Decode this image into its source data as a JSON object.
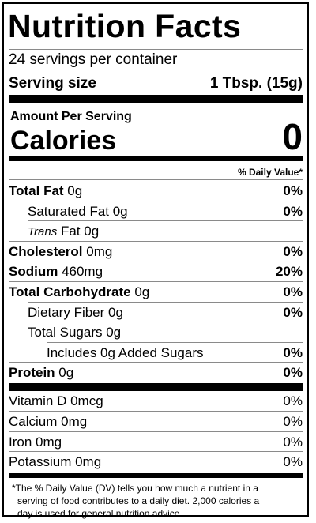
{
  "title": "Nutrition Facts",
  "servings_per_container": "24 servings per container",
  "serving_size": {
    "label": "Serving size",
    "value": "1 Tbsp. (15g)"
  },
  "amount_per_serving": "Amount Per Serving",
  "calories": {
    "label": "Calories",
    "value": "0"
  },
  "daily_value_header": "% Daily Value*",
  "nutrients": [
    {
      "name_bold": "Total Fat",
      "amount": " 0g",
      "dv": "0%",
      "indent": 0,
      "dv_bold": true
    },
    {
      "name": "Saturated Fat 0g",
      "dv": "0%",
      "indent": 1,
      "dv_bold": true
    },
    {
      "name_italic": "Trans",
      "amount": " Fat 0g",
      "dv": "",
      "indent": 1
    },
    {
      "name_bold": "Cholesterol",
      "amount": " 0mg",
      "dv": "0%",
      "indent": 0,
      "dv_bold": true
    },
    {
      "name_bold": "Sodium",
      "amount": " 460mg",
      "dv": "20%",
      "indent": 0,
      "dv_bold": true
    },
    {
      "name_bold": "Total Carbohydrate",
      "amount": " 0g",
      "dv": "0%",
      "indent": 0,
      "dv_bold": true
    },
    {
      "name": "Dietary Fiber 0g",
      "dv": "0%",
      "indent": 1,
      "dv_bold": true
    },
    {
      "name": "Total Sugars 0g",
      "dv": "",
      "indent": 1
    },
    {
      "name": "Includes 0g Added Sugars",
      "dv": "0%",
      "indent": 2,
      "dv_bold": true
    },
    {
      "name_bold": "Protein",
      "amount": " 0g",
      "dv": "0%",
      "indent": 0,
      "dv_bold": true
    }
  ],
  "vitamins": [
    {
      "name": "Vitamin D 0mcg",
      "dv": "0%"
    },
    {
      "name": "Calcium 0mg",
      "dv": "0%"
    },
    {
      "name": "Iron 0mg",
      "dv": "0%"
    },
    {
      "name": "Potassium 0mg",
      "dv": "0%"
    }
  ],
  "footnote": {
    "line1": "*The % Daily Value (DV) tells you how much a nutrient in a",
    "line2": "serving of food contributes to a daily diet. 2,000 calories a",
    "line3": "day is used for general nutrition advice."
  }
}
